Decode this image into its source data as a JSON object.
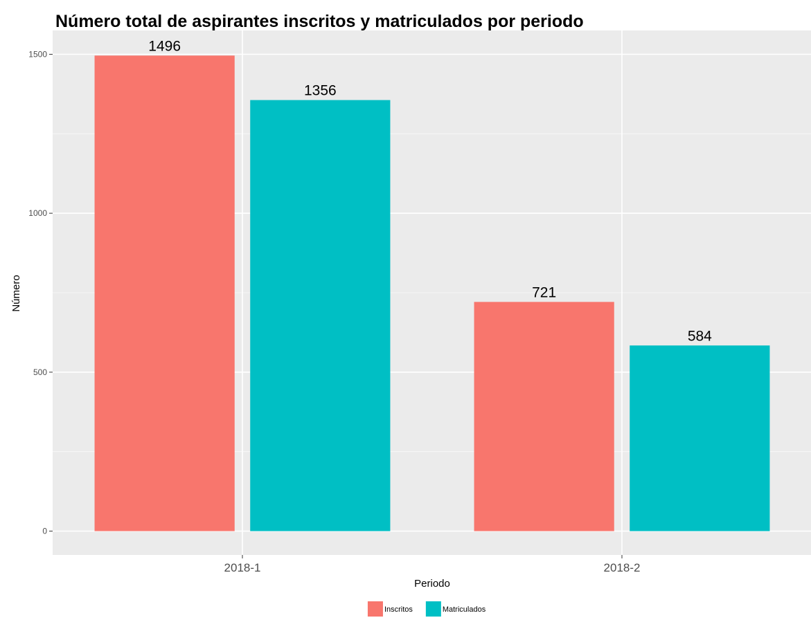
{
  "chart_data": {
    "type": "bar",
    "title": "Número total de aspirantes inscritos y matriculados por periodo",
    "xlabel": "Periodo",
    "ylabel": "Número",
    "categories": [
      "2018-1",
      "2018-2"
    ],
    "series": [
      {
        "name": "Inscritos",
        "values": [
          1496,
          721
        ],
        "color": "#F8766D"
      },
      {
        "name": "Matriculados",
        "values": [
          1356,
          584
        ],
        "color": "#00BFC4"
      }
    ],
    "data_labels": [
      [
        "1496",
        "721"
      ],
      [
        "1356",
        "584"
      ]
    ],
    "ylim": [
      -75,
      1575
    ],
    "yticks": [
      0,
      500,
      1000,
      1500
    ],
    "ytick_labels": [
      "0",
      "500",
      "1000",
      "1500"
    ],
    "grid": true,
    "legend_position": "bottom",
    "panel_background": "#EBEBEB",
    "grid_color": "#FFFFFF"
  }
}
